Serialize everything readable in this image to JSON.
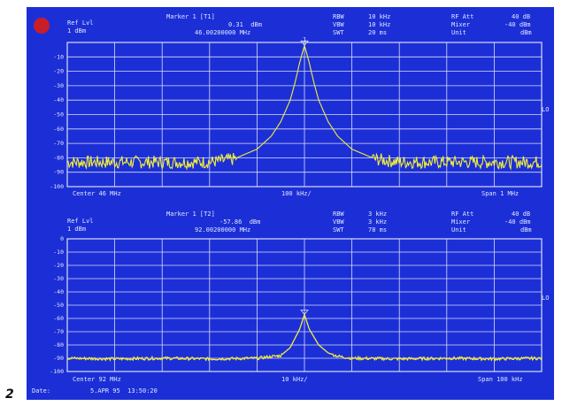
{
  "figure_label": "2",
  "date_label": "Date:",
  "date_value": "5.APR 95  13:50:20",
  "colors": {
    "background": "#1c2fd6",
    "trace": "#f2ee3a",
    "grid": "#d8def8",
    "text": "#dfe6ff"
  },
  "logo": "rohde-schwarz-logo-icon",
  "top": {
    "ref_lvl_label": "Ref Lvl",
    "ref_lvl_value": "1 dBm",
    "marker_label": "Marker 1 [T1]",
    "marker_level": "0.31  dBm",
    "marker_freq": "46.00200000 MHz",
    "marker_num": "1",
    "rbw_label": "RBW",
    "rbw_value": "10 kHz",
    "vbw_label": "VBW",
    "vbw_value": "10 kHz",
    "swt_label": "SWT",
    "swt_value": "20 ms",
    "rfatt_label": "RF Att",
    "rfatt_value": "40 dB",
    "mixer_label": "Mixer",
    "mixer_value": "-40 dBm",
    "unit_label": "Unit",
    "unit_value": "dBm",
    "lo": "LO",
    "center": "Center 46 MHz",
    "div": "100 kHz/",
    "span": "Span 1 MHz"
  },
  "bottom": {
    "ref_lvl_label": "Ref Lvl",
    "ref_lvl_value": "1 dBm",
    "marker_label": "Marker 1 [T2]",
    "marker_level": "-57.86  dBm",
    "marker_freq": "92.00200000 MHz",
    "rbw_label": "RBW",
    "rbw_value": "3 kHz",
    "vbw_label": "VBW",
    "vbw_value": "3 kHz",
    "swt_label": "SWT",
    "swt_value": "78 ms",
    "rfatt_label": "RF Att",
    "rfatt_value": "40 dB",
    "mixer_label": "Mixer",
    "mixer_value": "-40 dBm",
    "unit_label": "Unit",
    "unit_value": "dBm",
    "lo": "LO",
    "center": "Center 92 MHz",
    "div": "10 kHz/",
    "span": "Span 100 kHz"
  },
  "chart_data": [
    {
      "type": "line",
      "xlabel": "",
      "ylabel": "",
      "xlim": [
        45.5,
        46.5
      ],
      "ylim": [
        -100,
        0
      ],
      "yticks": [
        "-10",
        "-20",
        "-30",
        "-40",
        "-50",
        "-60",
        "-70",
        "-80",
        "-90",
        "-100"
      ],
      "grid": true,
      "series": [
        {
          "x": [
            45.5,
            45.6,
            45.7,
            45.8,
            45.85,
            45.9,
            45.93,
            45.95,
            45.97,
            45.98,
            45.99,
            46.0,
            46.01,
            46.02,
            46.03,
            46.05,
            46.07,
            46.1,
            46.15,
            46.2,
            46.3,
            46.4,
            46.5
          ],
          "values": [
            -83,
            -83,
            -83,
            -83,
            -81,
            -74,
            -65,
            -55,
            -40,
            -28,
            -14,
            -2,
            -14,
            -28,
            -40,
            -55,
            -65,
            -74,
            -81,
            -83,
            -83,
            -83,
            -83
          ]
        }
      ]
    },
    {
      "type": "line",
      "xlabel": "",
      "ylabel": "",
      "xlim": [
        91.95,
        92.05
      ],
      "ylim": [
        -100,
        0
      ],
      "yticks": [
        "0",
        "-10",
        "-20",
        "-30",
        "-40",
        "-50",
        "-60",
        "-70",
        "-80",
        "-90",
        "-100"
      ],
      "grid": true,
      "series": [
        {
          "x": [
            91.95,
            91.96,
            91.97,
            91.98,
            91.99,
            91.995,
            91.997,
            91.999,
            92.0,
            92.001,
            92.003,
            92.005,
            92.007,
            92.01,
            92.02,
            92.03,
            92.04,
            92.05
          ],
          "values": [
            -90,
            -90.5,
            -90,
            -90.5,
            -90,
            -88,
            -82,
            -68,
            -57,
            -68,
            -80,
            -86,
            -88.5,
            -90,
            -90.5,
            -90,
            -90.5,
            -90
          ]
        }
      ]
    }
  ]
}
